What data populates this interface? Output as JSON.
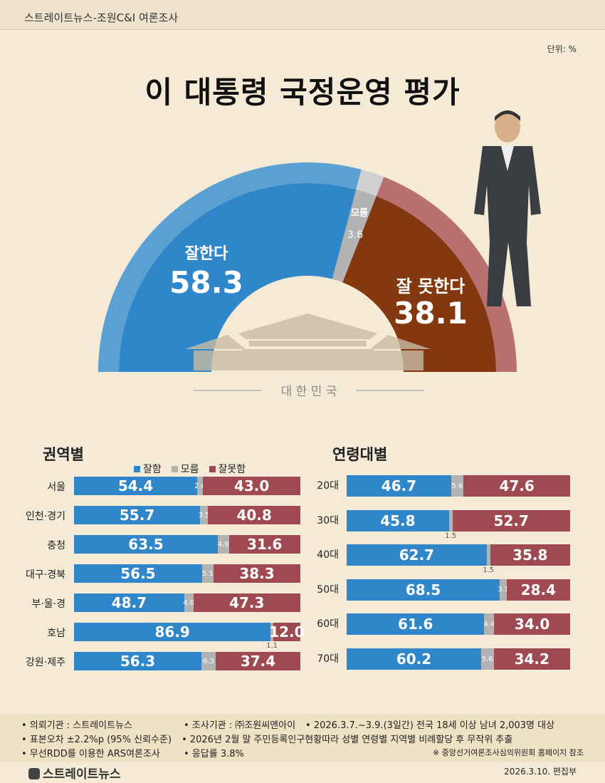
{
  "header": {
    "source": "스트레이트뉴스-조원C&I 여론조사",
    "unit": "단위: %",
    "title": "이 대통령 국정운영 평가"
  },
  "gauge": {
    "good_label": "잘한다",
    "good": "58.3",
    "unknown_label": "모름",
    "unknown": "3.6",
    "bad_label": "잘 못한다",
    "bad": "38.1",
    "emblem_text": "대 한 민 국"
  },
  "colors": {
    "good": "#2f86c8",
    "unknown": "#b3b3b3",
    "bad": "#9e4a50",
    "gauge_bad": "#83380f",
    "background": "#f4ead6"
  },
  "regional": {
    "title": "권역별",
    "legend": [
      "잘함",
      "모름",
      "잘못함"
    ]
  },
  "age": {
    "title": "연령대별"
  },
  "chart_data": [
    {
      "type": "pie",
      "title": "이 대통령 국정운영 평가",
      "categories": [
        "잘한다",
        "모름",
        "잘 못한다"
      ],
      "values": [
        58.3,
        3.6,
        38.1
      ]
    },
    {
      "type": "bar",
      "stacked": true,
      "orientation": "horizontal",
      "title": "권역별",
      "categories": [
        "서울",
        "인천·경기",
        "충청",
        "대구·경북",
        "부·울·경",
        "호남",
        "강원·제주"
      ],
      "series": [
        {
          "name": "잘함",
          "values": [
            54.4,
            55.7,
            63.5,
            56.5,
            48.7,
            86.9,
            56.3
          ]
        },
        {
          "name": "모름",
          "values": [
            2.6,
            3.5,
            4.9,
            5.1,
            4.0,
            1.1,
            6.3
          ]
        },
        {
          "name": "잘못함",
          "values": [
            43.0,
            40.8,
            31.6,
            38.3,
            47.3,
            12.0,
            37.4
          ]
        }
      ]
    },
    {
      "type": "bar",
      "stacked": true,
      "orientation": "horizontal",
      "title": "연령대별",
      "categories": [
        "20대",
        "30대",
        "40대",
        "50대",
        "60대",
        "70대"
      ],
      "series": [
        {
          "name": "잘함",
          "values": [
            46.7,
            45.8,
            62.7,
            68.5,
            61.6,
            60.2
          ]
        },
        {
          "name": "모름",
          "values": [
            5.6,
            1.5,
            1.5,
            3.1,
            4.4,
            5.6
          ]
        },
        {
          "name": "잘못함",
          "values": [
            47.6,
            52.7,
            35.8,
            28.4,
            34.0,
            34.2
          ]
        }
      ]
    }
  ],
  "footer": {
    "lines": [
      "• 의뢰기관 : 스트레이트뉴스",
      "• 조사기관 : ㈜조원씨앤아이",
      "• 2026.3.7.~3.9.(3일간) 전국 18세 이상 남녀 2,003명 대상",
      "• 표본오차 ±2.2%p (95% 신뢰수준)",
      "• 2026년 2월 말 주민등록인구현황따라 성별 연령별 지역별 비례할당 후 무작위 추출",
      "• 무선RDD를 이용한 ARS여론조사",
      "• 응답률 3.8%",
      "※ 중앙선거여론조사심의위원회 홈페이지 참조"
    ],
    "logo": "스트레이트뉴스",
    "date": "2026.3.10.  편집부"
  }
}
